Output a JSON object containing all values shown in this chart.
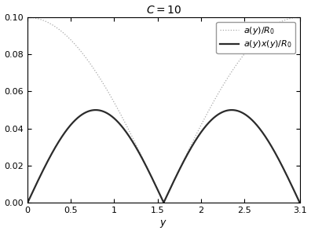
{
  "title": "$C = 10$",
  "xlabel": "$y$",
  "xlim": [
    0,
    3.14159265358979
  ],
  "ylim": [
    0,
    0.1
  ],
  "yticks": [
    0,
    0.02,
    0.04,
    0.06,
    0.08,
    0.1
  ],
  "xticks": [
    0,
    0.5,
    1.0,
    1.5,
    2.0,
    2.5,
    3.14159265358979
  ],
  "xtick_labels": [
    "0",
    "0.5",
    "1",
    "1.5",
    "2",
    "2.5",
    "3.1"
  ],
  "C": 10,
  "legend_a": "$a(y)/R_0$",
  "legend_ax": "$a(y)x(y)/R_0$",
  "color_dotted": "#aaaaaa",
  "color_solid": "#2b2b2b",
  "bg_color": "#ffffff",
  "title_fontsize": 10,
  "legend_fontsize": 8,
  "tick_fontsize": 8,
  "label_fontsize": 9,
  "n_points": 8000,
  "linewidth_dotted": 0.9,
  "linewidth_solid": 1.6
}
